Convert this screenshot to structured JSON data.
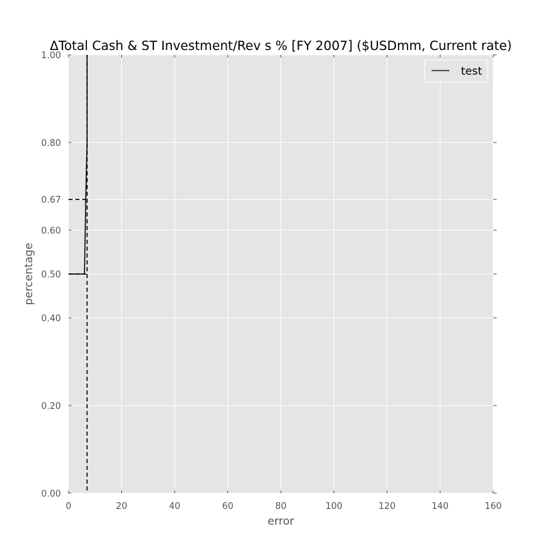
{
  "chart_data": {
    "type": "line",
    "title": "ΔTotal Cash & ST Investment/Rev s % [FY 2007] ($USDmm, Current rate)",
    "xlabel": "error",
    "ylabel": "percentage",
    "xlim": [
      0,
      160
    ],
    "ylim": [
      0,
      1
    ],
    "xticks": [
      0,
      20,
      40,
      60,
      80,
      100,
      120,
      140,
      160
    ],
    "xtick_labels": [
      "0",
      "20",
      "40",
      "60",
      "80",
      "100",
      "120",
      "140",
      "160"
    ],
    "yticks": [
      0,
      0.2,
      0.4,
      0.5,
      0.6,
      0.67,
      0.8,
      1.0
    ],
    "ytick_labels": [
      "0.00",
      "0.20",
      "0.40",
      "0.50",
      "0.60",
      "0.67",
      "0.80",
      "1.00"
    ],
    "grid": true,
    "legend_position": "top-right",
    "background_color": "#e5e5e5",
    "series": [
      {
        "name": "test",
        "color": "#000000",
        "style": "solid",
        "x": [
          0,
          6,
          6.5,
          7,
          7
        ],
        "y": [
          0.5,
          0.5,
          0.67,
          0.8,
          1.0
        ]
      }
    ],
    "reference_lines": [
      {
        "orientation": "vertical",
        "x": 7,
        "style": "dashed",
        "color": "#000000"
      },
      {
        "orientation": "horizontal",
        "y": 0.5,
        "x_range": [
          0,
          7
        ],
        "style": "dashed",
        "color": "#000000"
      },
      {
        "orientation": "horizontal",
        "y": 0.67,
        "x_range": [
          0,
          7
        ],
        "style": "dashed",
        "color": "#000000"
      }
    ]
  }
}
